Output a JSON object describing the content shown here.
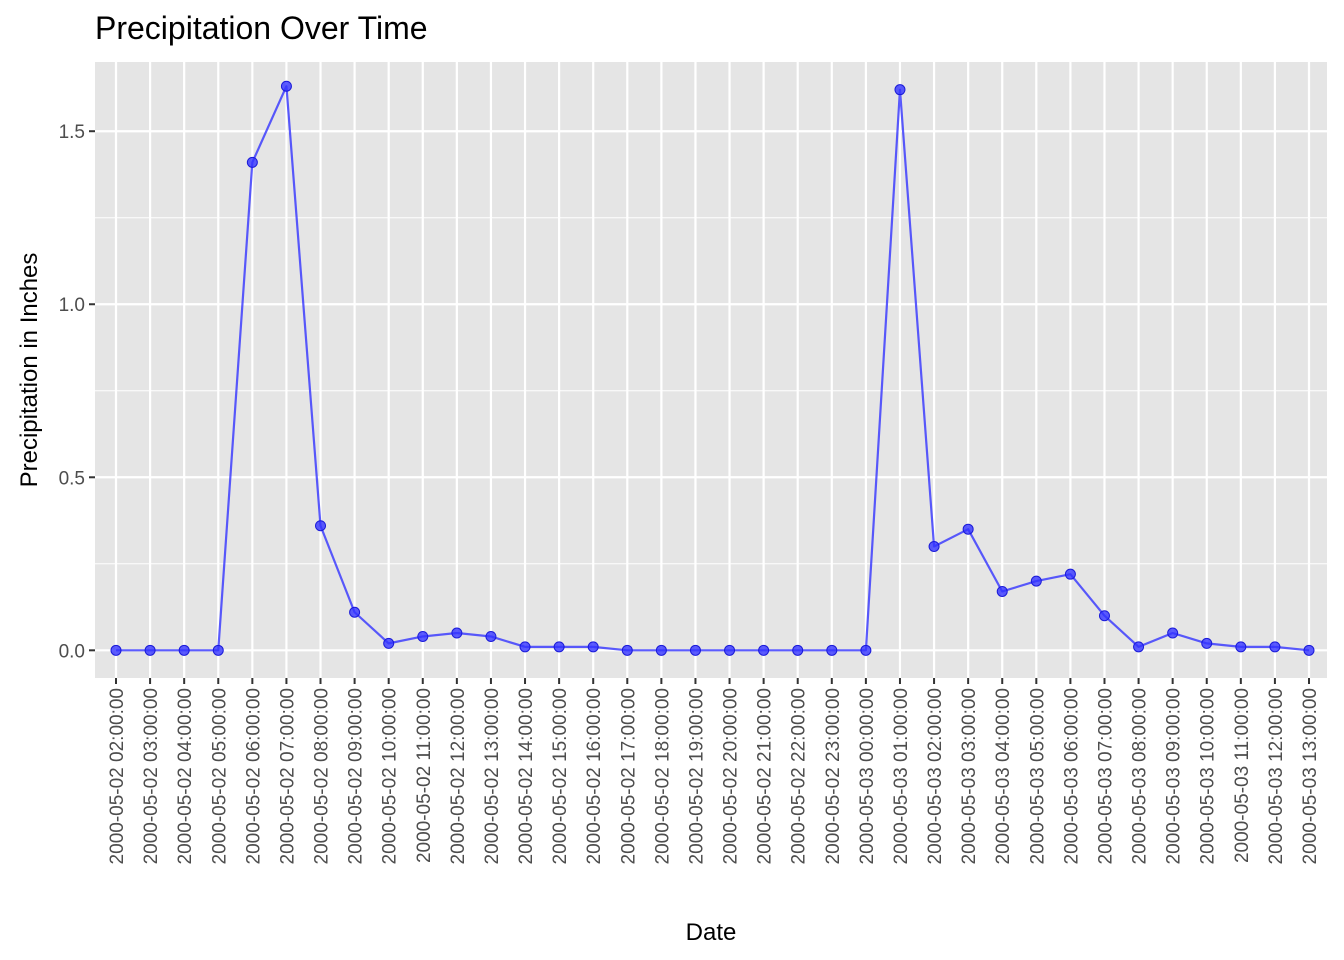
{
  "chart_data": {
    "type": "line",
    "title": "Precipitation Over Time",
    "xlabel": "Date",
    "ylabel": "Precipitation in Inches",
    "ylim": [
      -0.08,
      1.7
    ],
    "yticks": [
      0.0,
      0.5,
      1.0,
      1.5
    ],
    "ytick_labels": [
      "0.0",
      "0.5",
      "1.0",
      "1.5"
    ],
    "grid": true,
    "colors": {
      "series": "#3333ff",
      "panel_background": "#e5e5e5",
      "grid": "#ffffff"
    },
    "categories": [
      "2000-05-02 02:00:00",
      "2000-05-02 03:00:00",
      "2000-05-02 04:00:00",
      "2000-05-02 05:00:00",
      "2000-05-02 06:00:00",
      "2000-05-02 07:00:00",
      "2000-05-02 08:00:00",
      "2000-05-02 09:00:00",
      "2000-05-02 10:00:00",
      "2000-05-02 11:00:00",
      "2000-05-02 12:00:00",
      "2000-05-02 13:00:00",
      "2000-05-02 14:00:00",
      "2000-05-02 15:00:00",
      "2000-05-02 16:00:00",
      "2000-05-02 17:00:00",
      "2000-05-02 18:00:00",
      "2000-05-02 19:00:00",
      "2000-05-02 20:00:00",
      "2000-05-02 21:00:00",
      "2000-05-02 22:00:00",
      "2000-05-02 23:00:00",
      "2000-05-03 00:00:00",
      "2000-05-03 01:00:00",
      "2000-05-03 02:00:00",
      "2000-05-03 03:00:00",
      "2000-05-03 04:00:00",
      "2000-05-03 05:00:00",
      "2000-05-03 06:00:00",
      "2000-05-03 07:00:00",
      "2000-05-03 08:00:00",
      "2000-05-03 09:00:00",
      "2000-05-03 10:00:00",
      "2000-05-03 11:00:00",
      "2000-05-03 12:00:00",
      "2000-05-03 13:00:00"
    ],
    "series": [
      {
        "name": "Precipitation",
        "values": [
          0,
          0,
          0,
          0,
          1.41,
          1.63,
          0.36,
          0.11,
          0.02,
          0.04,
          0.05,
          0.04,
          0.01,
          0.01,
          0.01,
          0,
          0,
          0,
          0,
          0,
          0,
          0,
          0,
          1.62,
          0.3,
          0.35,
          0.17,
          0.2,
          0.22,
          0.1,
          0.01,
          0.05,
          0.02,
          0.01,
          0.01,
          0
        ]
      }
    ]
  }
}
